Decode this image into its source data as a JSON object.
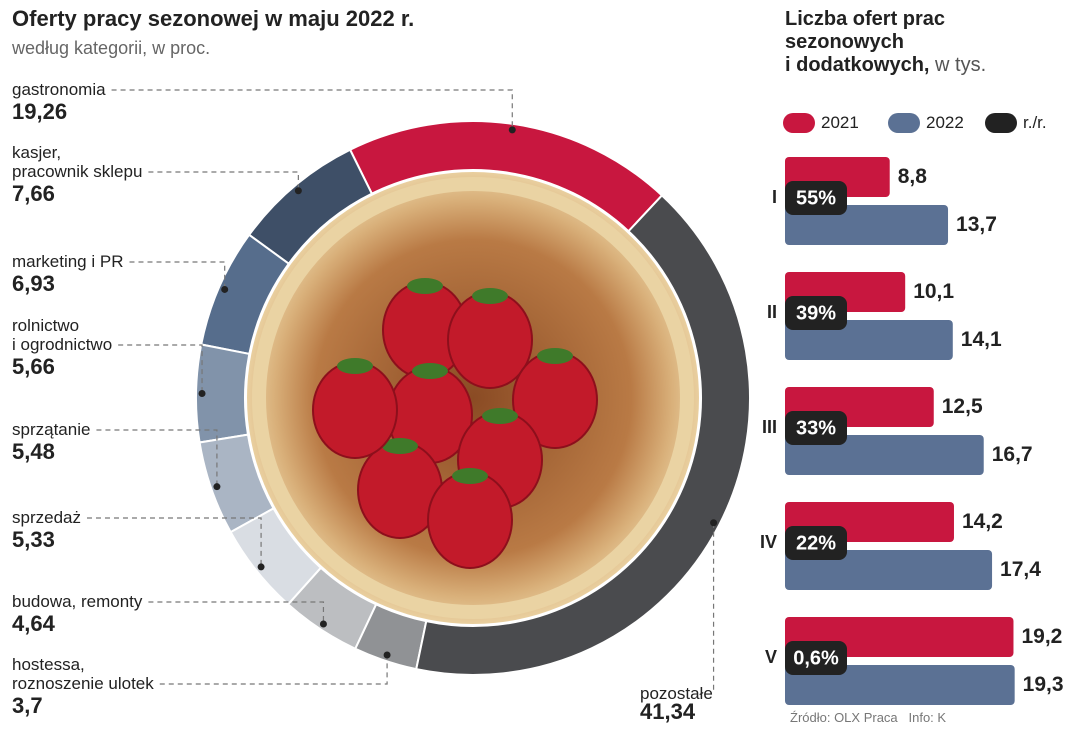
{
  "chart_data": [
    {
      "type": "donut",
      "title": "Oferty pracy sezonowej w maju 2022 r.",
      "subtitle": "według kategorii, w proc.",
      "categories": [
        "gastronomia",
        "kasjer,\npracownik sklepu",
        "marketing i PR",
        "rolnictwo\ni ogrodnictwo",
        "sprzątanie",
        "sprzedaż",
        "budowa, remonty",
        "hostessa,\nroznoszenie ulotek",
        "pozostałe"
      ],
      "values": [
        19.26,
        7.66,
        6.93,
        5.66,
        5.48,
        5.33,
        4.64,
        3.7,
        41.34
      ],
      "value_labels": [
        "19,26",
        "7,66",
        "6,93",
        "5,66",
        "5,48",
        "5,33",
        "4,64",
        "3,7",
        "41,34"
      ],
      "colors": [
        "#c8173f",
        "#3e4f67",
        "#566d8c",
        "#8193aa",
        "#aab5c4",
        "#d9dde3",
        "#bcbec1",
        "#909295",
        "#4a4b4e"
      ]
    },
    {
      "type": "bar",
      "title": "Liczba ofert prac\nsezonowych\ni dodatkowych,",
      "unit": "w tys.",
      "categories": [
        "I",
        "II",
        "III",
        "IV",
        "V"
      ],
      "series": [
        {
          "name": "2021",
          "color": "#c8173f",
          "values": [
            8.8,
            10.1,
            12.5,
            14.2,
            19.2
          ],
          "value_labels": [
            "8,8",
            "10,1",
            "12,5",
            "14,2",
            "19,2"
          ]
        },
        {
          "name": "2022",
          "color": "#5b7194",
          "values": [
            13.7,
            14.1,
            16.7,
            17.4,
            19.3
          ],
          "value_labels": [
            "13,7",
            "14,1",
            "16,7",
            "17,4",
            "19,3"
          ]
        }
      ],
      "change": {
        "name": "r./r.",
        "color": "#222222",
        "values": [
          55,
          39,
          33,
          22,
          0.6
        ],
        "value_labels": [
          "55%",
          "39%",
          "33%",
          "22%",
          "0,6%"
        ]
      },
      "source": "Źródło: OLX Praca",
      "credit": "Info: K"
    }
  ]
}
